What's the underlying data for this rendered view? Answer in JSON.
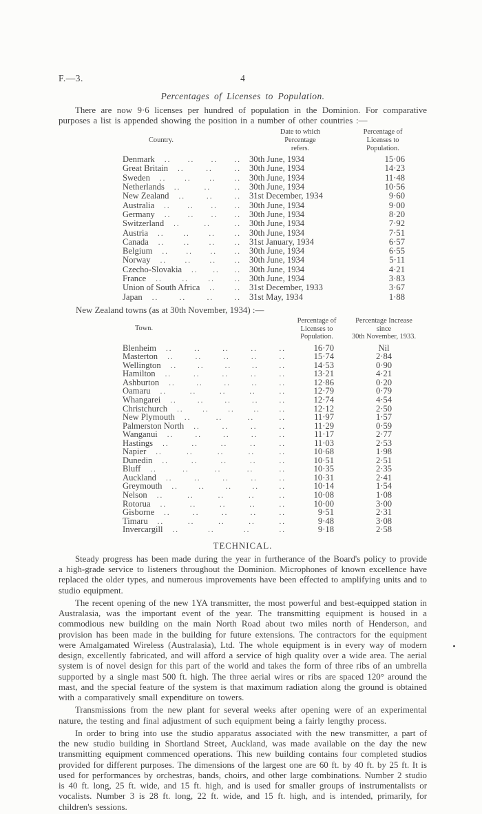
{
  "page": {
    "doc_ref": "F.—3.",
    "page_number": "4"
  },
  "colors": {
    "paper": "#fcfcfa",
    "ink": "#424242"
  },
  "licenses": {
    "title": "Percentages of Licenses to Population.",
    "intro": "There are now 9·6 licenses per hundred of population in the Dominion.  For comparative purposes a list is appended showing the position in a number of other countries :—",
    "countries_table": {
      "col_country": "Country.",
      "col_date": "Date to which\nPercentage\nrefers.",
      "col_pct": "Percentage of\nLicenses to\nPopulation.",
      "rows": [
        {
          "country": "Denmark",
          "dots": 4,
          "date": "30th June, 1934",
          "pct": "15·06"
        },
        {
          "country": "Great Britain",
          "dots": 3,
          "date": "30th June, 1934",
          "pct": "14·23"
        },
        {
          "country": "Sweden",
          "dots": 4,
          "date": "30th June, 1934",
          "pct": "11·48"
        },
        {
          "country": "Netherlands",
          "dots": 3,
          "date": "30th June, 1934",
          "pct": "10·56"
        },
        {
          "country": "New Zealand",
          "dots": 3,
          "date": "31st December, 1934",
          "pct": "9·60"
        },
        {
          "country": "Australia",
          "dots": 4,
          "date": "30th June, 1934",
          "pct": "9·00"
        },
        {
          "country": "Germany",
          "dots": 4,
          "date": "30th June, 1934",
          "pct": "8·20"
        },
        {
          "country": "Switzerland",
          "dots": 3,
          "date": "30th June, 1934",
          "pct": "7·92"
        },
        {
          "country": "Austria",
          "dots": 4,
          "date": "30th June, 1934",
          "pct": "7·51"
        },
        {
          "country": "Canada",
          "dots": 4,
          "date": "31st January, 1934",
          "pct": "6·57"
        },
        {
          "country": "Belgium",
          "dots": 4,
          "date": "30th June, 1934",
          "pct": "6·55"
        },
        {
          "country": "Norway",
          "dots": 4,
          "date": "30th June, 1934",
          "pct": "5·11"
        },
        {
          "country": "Czecho-Slovakia",
          "dots": 3,
          "date": "30th June, 1934",
          "pct": "4·21"
        },
        {
          "country": "France",
          "dots": 4,
          "date": "30th June, 1934",
          "pct": "3·83"
        },
        {
          "country": "Union of South Africa",
          "dots": 2,
          "date": "31st December, 1933",
          "pct": "3·67"
        },
        {
          "country": "Japan",
          "dots": 4,
          "date": "31st May, 1934",
          "pct": "1·88"
        }
      ]
    },
    "towns_intro": "New Zealand towns (as at 30th November, 1934) :—",
    "towns_table": {
      "col_town": "Town.",
      "col_pct": "Percentage of\nLicenses to\nPopulation.",
      "col_increase": "Percentage Increase\nsince\n30th November, 1933.",
      "rows": [
        {
          "town": "Blenheim",
          "dots": 5,
          "pct": "16·70",
          "increase": "Nil"
        },
        {
          "town": "Masterton",
          "dots": 5,
          "pct": "15·74",
          "increase": "2·84"
        },
        {
          "town": "Wellington",
          "dots": 5,
          "pct": "14·53",
          "increase": "0·90"
        },
        {
          "town": "Hamilton",
          "dots": 5,
          "pct": "13·21",
          "increase": "4·21"
        },
        {
          "town": "Ashburton",
          "dots": 5,
          "pct": "12·86",
          "increase": "0·20"
        },
        {
          "town": "Oamaru",
          "dots": 5,
          "pct": "12·79",
          "increase": "0·79"
        },
        {
          "town": "Whangarei",
          "dots": 5,
          "pct": "12·74",
          "increase": "4·54"
        },
        {
          "town": "Christchurch",
          "dots": 5,
          "pct": "12·12",
          "increase": "2·50"
        },
        {
          "town": "New Plymouth",
          "dots": 4,
          "pct": "11·97",
          "increase": "1·57"
        },
        {
          "town": "Palmerston North",
          "dots": 4,
          "pct": "11·29",
          "increase": "0·59"
        },
        {
          "town": "Wanganui",
          "dots": 5,
          "pct": "11·17",
          "increase": "2·77"
        },
        {
          "town": "Hastings",
          "dots": 5,
          "pct": "11·03",
          "increase": "2·53"
        },
        {
          "town": "Napier",
          "dots": 5,
          "pct": "10·68",
          "increase": "1·98"
        },
        {
          "town": "Dunedin",
          "dots": 5,
          "pct": "10·51",
          "increase": "2·51"
        },
        {
          "town": "Bluff",
          "dots": 5,
          "pct": "10·35",
          "increase": "2·35"
        },
        {
          "town": "Auckland",
          "dots": 5,
          "pct": "10·31",
          "increase": "2·41"
        },
        {
          "town": "Greymouth",
          "dots": 5,
          "pct": "10·14",
          "increase": "1·54"
        },
        {
          "town": "Nelson",
          "dots": 5,
          "pct": "10·08",
          "increase": "1·08"
        },
        {
          "town": "Rotorua",
          "dots": 5,
          "pct": "10·00",
          "increase": "3·00"
        },
        {
          "town": "Gisborne",
          "dots": 5,
          "pct": "9·51",
          "increase": "2·31"
        },
        {
          "town": "Timaru",
          "dots": 5,
          "pct": "9·48",
          "increase": "3·08"
        },
        {
          "town": "Invercargill",
          "dots": 4,
          "pct": "9·18",
          "increase": "2·58"
        }
      ]
    }
  },
  "technical": {
    "heading": "TECHNICAL.",
    "paragraphs": [
      "Steady progress has been made during the year in furtherance of the Board's policy to provide a high-grade service to listeners throughout the Dominion.  Microphones of known excellence have replaced the older types, and numerous improvements have been effected to amplifying units and to studio equipment.",
      "The recent opening of the new 1YA transmitter, the most powerful and best-equipped station in Australasia, was the important event of the year.  The transmitting equipment is housed in a commodious new building on the main North Road about two miles north of Henderson, and provision has been made in the building for future extensions.  The contractors for the equipment were Amalgamated Wireless (Australasia), Ltd.  The whole equipment is in every way of modern design, excellently fabricated, and will afford a service of high quality over a wide area.  The aerial system is of novel design for this part of the world and takes the form of three ribs of an umbrella supported by a single mast 500 ft. high.  The three aerial wires or ribs are spaced 120° around the mast, and the special feature of the system is that maximum radiation along the ground is obtained with a comparatively small expenditure on towers.",
      "Transmissions from the new plant for several weeks after opening were of an experimental nature, the testing and final adjustment of such equipment being a fairly lengthy process.",
      "In order to bring into use the studio apparatus associated with the new transmitter, a part of the new studio building in Shortland Street, Auckland, was made available on the day the new transmitting equipment commenced operations.  This new building contains four completed studios provided for different purposes.  The dimensions of the largest one are 60 ft. by 40 ft. by 25 ft.  It is used for performances by orchestras, bands, choirs, and other large combinations.  Number 2 studio is 40 ft. long, 25 ft. wide, and 15 ft. high, and is used for smaller groups of instrumentalists or vocalists.  Number 3 is 28 ft. long, 22 ft. wide, and 15 ft. high, and is intended, primarily, for children's sessions."
    ]
  }
}
